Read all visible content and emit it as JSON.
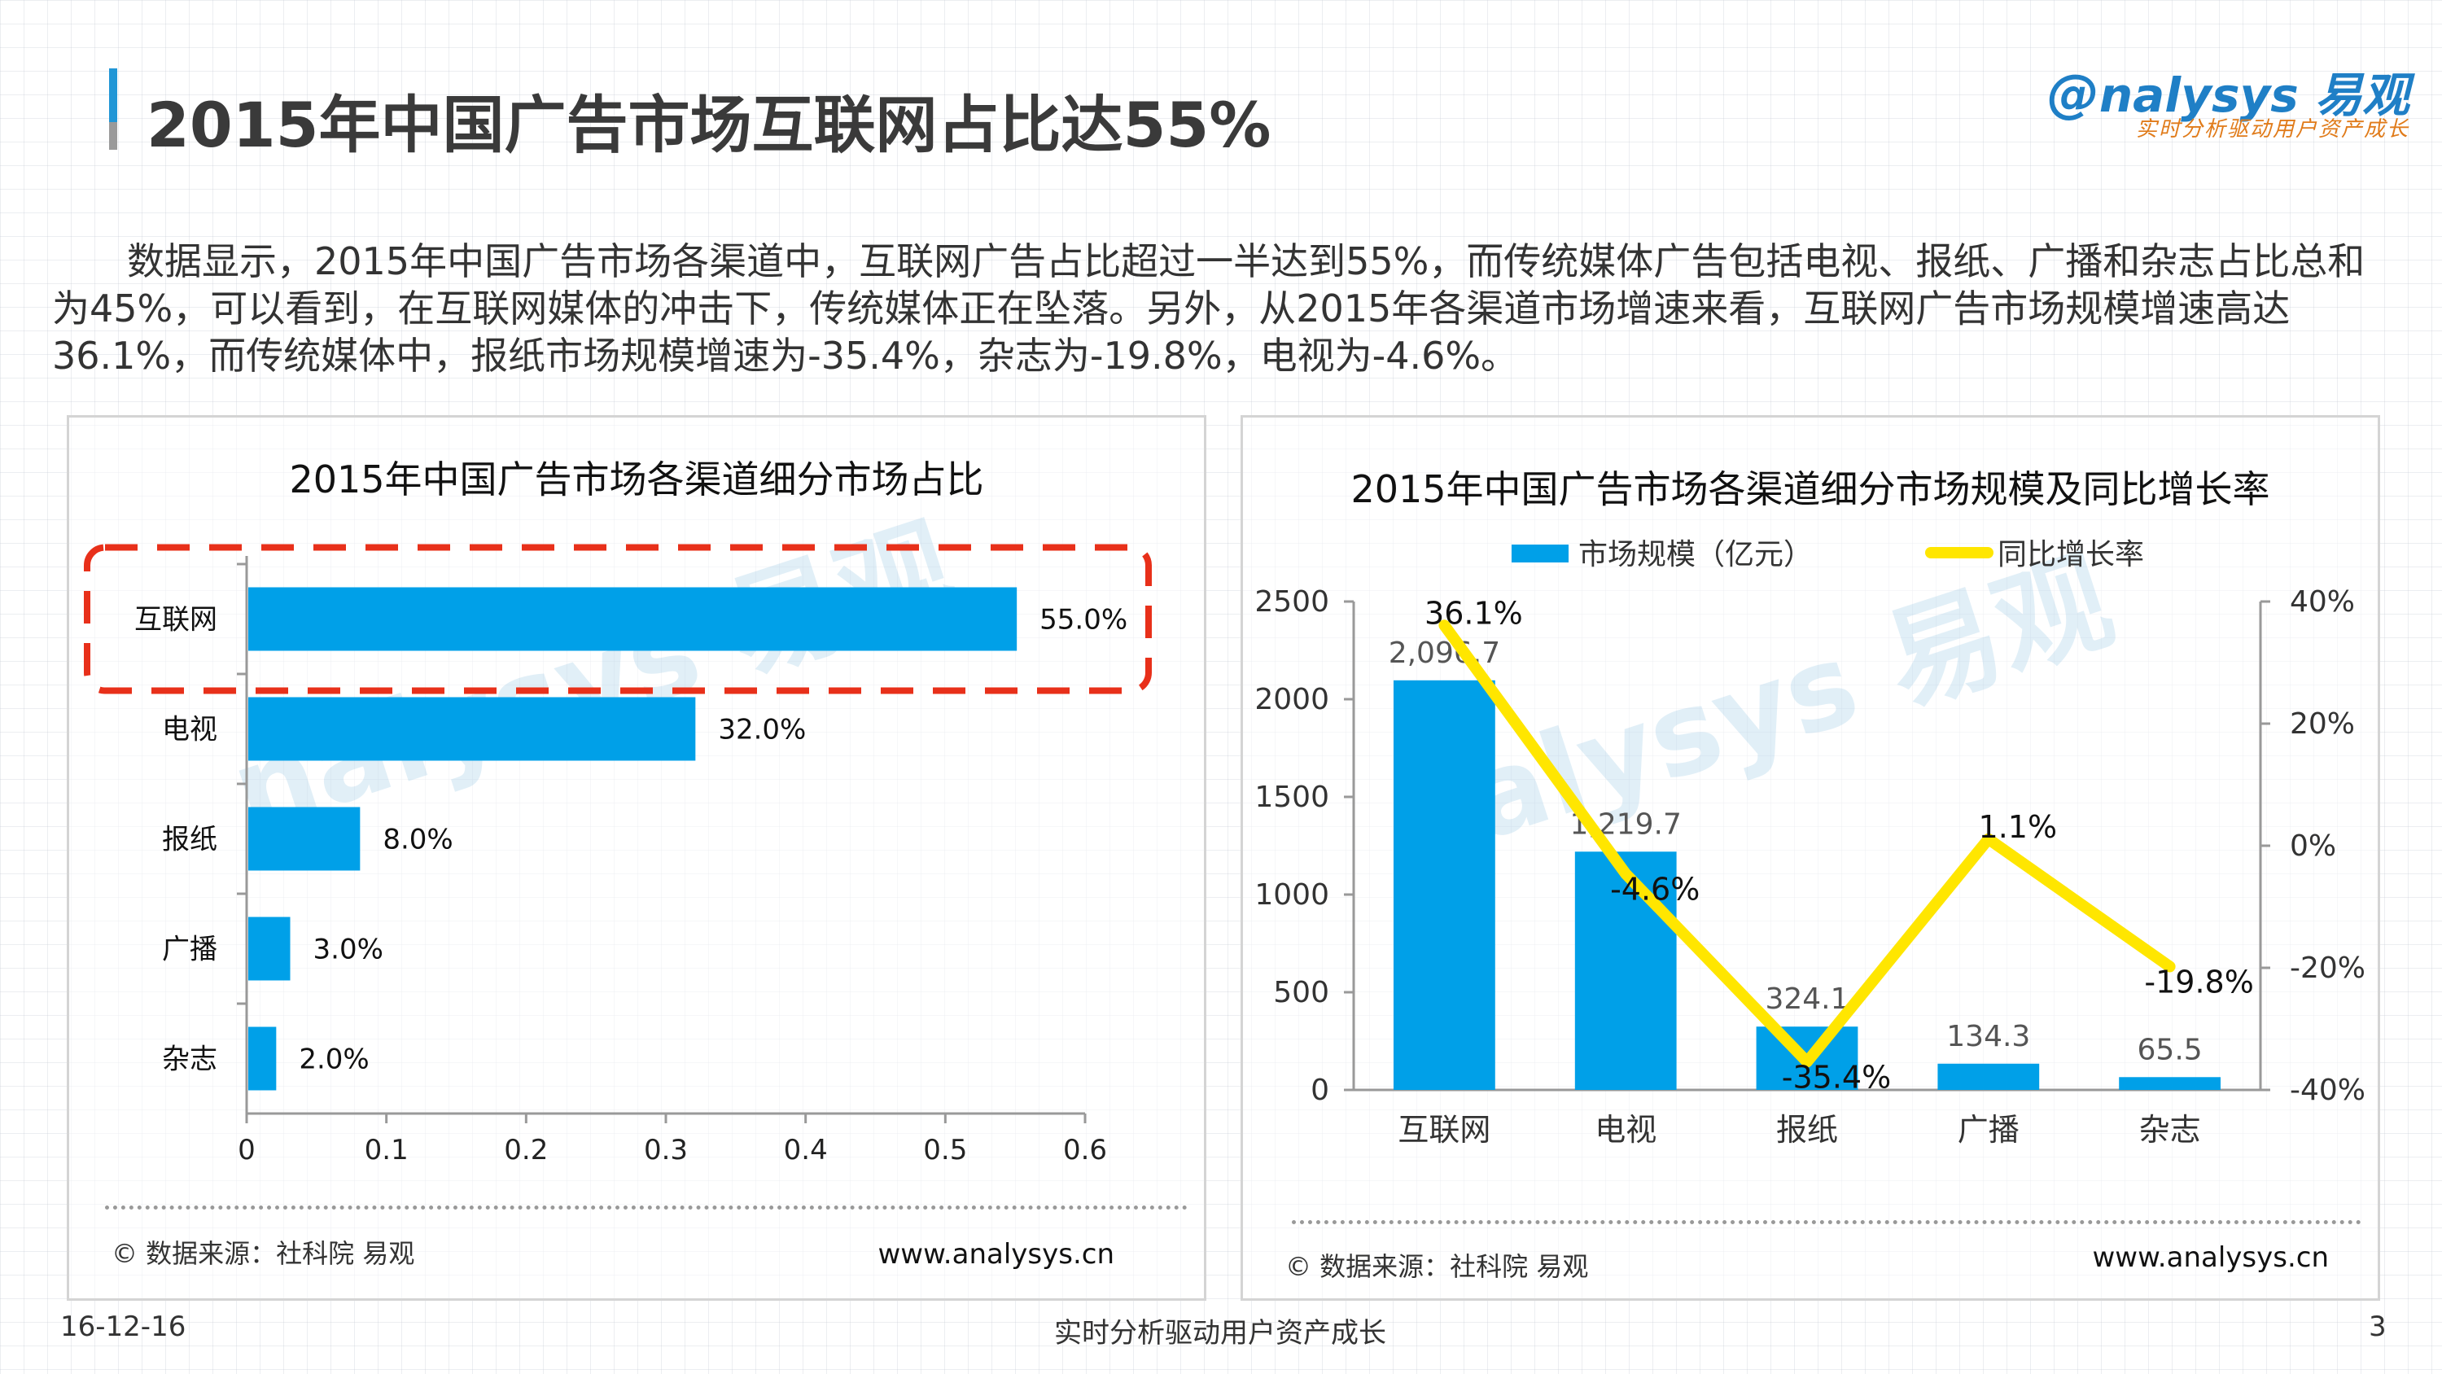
{
  "page": {
    "title": "2015年中国广告市场互联网占比达55%",
    "summary": "数据显示，2015年中国广告市场各渠道中，互联网广告占比超过一半达到55%，而传统媒体广告包括电视、报纸、广播和杂志占比总和为45%，可以看到，在互联网媒体的冲击下，传统媒体正在坠落。另外，从2015年各渠道市场增速来看，互联网广告市场规模增速高达36.1%，而传统媒体中，报纸市场规模增速为-35.4%，杂志为-19.8%，电视为-4.6%。",
    "footer_date": "16-12-16",
    "footer_slogan": "实时分析驱动用户资产成长",
    "page_number": "3"
  },
  "logo": {
    "main": "nalysys 易观",
    "sub": "实时分析驱动用户资产成长"
  },
  "colors": {
    "bar": "#00a0e8",
    "line": "#ffe600",
    "highlight": "#e8301a",
    "accent": "#2196d6"
  },
  "left_panel": {
    "source": "© 数据来源：社科院 易观",
    "site": "www.analysys.cn"
  },
  "right_panel": {
    "source": "© 数据来源：社科院 易观",
    "site": "www.analysys.cn"
  },
  "chart_data": [
    {
      "type": "bar",
      "orientation": "horizontal",
      "title": "2015年中国广告市场各渠道细分市场占比",
      "categories": [
        "互联网",
        "电视",
        "报纸",
        "广播",
        "杂志"
      ],
      "values": [
        0.55,
        0.32,
        0.08,
        0.03,
        0.02
      ],
      "data_labels": [
        "55.0%",
        "32.0%",
        "8.0%",
        "3.0%",
        "2.0%"
      ],
      "xlim": [
        0,
        0.6
      ],
      "xticks": [
        "0",
        "0.1",
        "0.2",
        "0.3",
        "0.4",
        "0.5",
        "0.6"
      ],
      "highlighted_category": "互联网",
      "grid": false
    },
    {
      "type": "bar+line",
      "title": "2015年中国广告市场各渠道细分市场规模及同比增长率",
      "categories": [
        "互联网",
        "电视",
        "报纸",
        "广播",
        "杂志"
      ],
      "series": [
        {
          "name": "市场规模（亿元）",
          "type": "bar",
          "axis": "left",
          "values": [
            2096.7,
            1219.7,
            324.1,
            134.3,
            65.5
          ],
          "labels": [
            "2,096.7",
            "1,219.7",
            "324.1",
            "134.3",
            "65.5"
          ]
        },
        {
          "name": "同比增长率",
          "type": "line",
          "axis": "right",
          "values": [
            36.1,
            -4.6,
            -35.4,
            1.1,
            -19.8
          ],
          "labels": [
            "36.1%",
            "-4.6%",
            "-35.4%",
            "1.1%",
            "-19.8%"
          ]
        }
      ],
      "ylim_left": [
        0,
        2500
      ],
      "yticks_left": [
        "0",
        "500",
        "1000",
        "1500",
        "2000",
        "2500"
      ],
      "ylim_right": [
        -40,
        40
      ],
      "yticks_right": [
        "-40%",
        "-20%",
        "0%",
        "20%",
        "40%"
      ],
      "legend_position": "top",
      "grid": false
    }
  ]
}
